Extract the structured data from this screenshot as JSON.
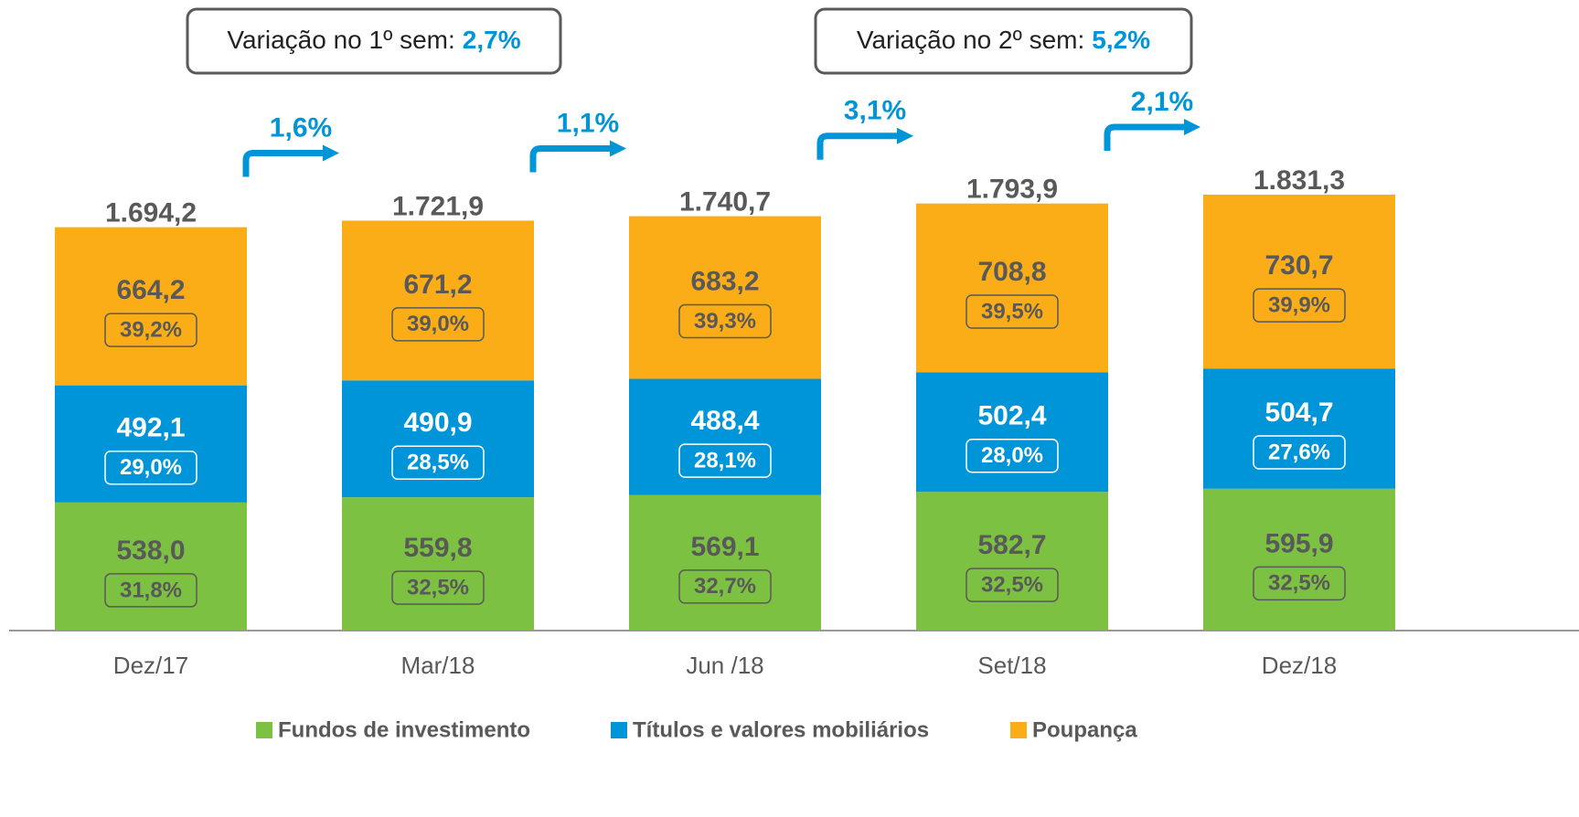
{
  "chart_data": {
    "type": "stacked_bar",
    "categories": [
      "Dez/17",
      "Mar/18",
      "Jun /18",
      "Set/18",
      "Dez/18"
    ],
    "series": [
      {
        "name": "Fundos de investimento",
        "color": "#7dc142",
        "values": [
          538.0,
          559.8,
          569.1,
          582.7,
          595.9
        ],
        "value_labels": [
          "538,0",
          "559,8",
          "569,1",
          "582,7",
          "595,9"
        ],
        "share_labels": [
          "31,8%",
          "32,5%",
          "32,7%",
          "32,5%",
          "32,5%"
        ]
      },
      {
        "name": "Títulos e valores mobiliários",
        "color": "#0094d9",
        "values": [
          492.1,
          490.9,
          488.4,
          502.4,
          504.7
        ],
        "value_labels": [
          "492,1",
          "490,9",
          "488,4",
          "502,4",
          "504,7"
        ],
        "share_labels": [
          "29,0%",
          "28,5%",
          "28,1%",
          "28,0%",
          "27,6%"
        ]
      },
      {
        "name": "Poupança",
        "color": "#fbad18",
        "values": [
          664.2,
          671.2,
          683.2,
          708.8,
          730.7
        ],
        "value_labels": [
          "664,2",
          "671,2",
          "683,2",
          "708,8",
          "730,7"
        ],
        "share_labels": [
          "39,2%",
          "39,0%",
          "39,3%",
          "39,5%",
          "39,9%"
        ]
      }
    ],
    "total_labels": [
      "1.694,2",
      "1.721,9",
      "1.740,7",
      "1.793,9",
      "1.831,3"
    ],
    "growth_labels": [
      "1,6%",
      "1,1%",
      "3,1%",
      "2,1%"
    ],
    "annotations": [
      {
        "text": "Variação no 1º sem:",
        "value_label": "2,7%"
      },
      {
        "text": "Variação no 2º sem:",
        "value_label": "5,2%"
      }
    ],
    "ylim": [
      0,
      2000
    ],
    "accent_color": "#0094d9"
  }
}
